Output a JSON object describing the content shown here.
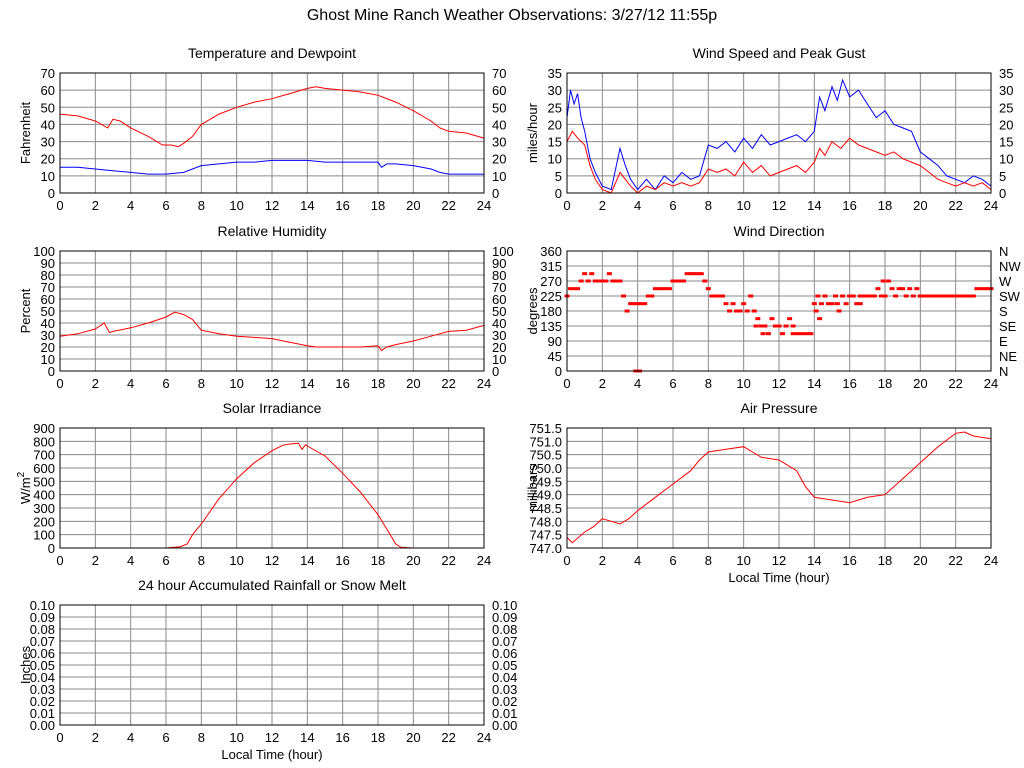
{
  "page": {
    "title": "Ghost Mine Ranch Weather Observations: 3/27/12 11:55p"
  },
  "chart_data": [
    {
      "id": "temp",
      "type": "line",
      "title": "Temperature and Dewpoint",
      "ylabel": "Fahrenheit",
      "xlabel": "",
      "xlim": [
        0,
        24
      ],
      "ylim": [
        0,
        70
      ],
      "xticks": [
        0,
        2,
        4,
        6,
        8,
        10,
        12,
        14,
        16,
        18,
        20,
        22,
        24
      ],
      "yticks": [
        0,
        10,
        20,
        30,
        40,
        50,
        60,
        70
      ],
      "right_ticks": [
        "0",
        "10",
        "20",
        "30",
        "40",
        "50",
        "60",
        "70"
      ],
      "grid": true,
      "series": [
        {
          "color": "#ff0000",
          "x": [
            0,
            1,
            2,
            2.7,
            3,
            3.4,
            4,
            5,
            5.8,
            6.3,
            6.7,
            7,
            7.5,
            8,
            9,
            10,
            11,
            12,
            13,
            14,
            14.5,
            15,
            16,
            17,
            18,
            19,
            20,
            21,
            21.5,
            22,
            23,
            24
          ],
          "y": [
            46,
            45,
            42,
            38,
            43,
            42,
            38,
            33,
            28,
            28,
            27,
            29,
            33,
            40,
            46,
            50,
            53,
            55,
            58,
            61,
            62,
            61,
            60,
            59,
            57,
            53,
            48,
            42,
            38,
            36,
            35,
            32
          ]
        },
        {
          "color": "#0000ff",
          "x": [
            0,
            1,
            2,
            3,
            4,
            5,
            6,
            7,
            7.5,
            8,
            9,
            10,
            11,
            12,
            13,
            14,
            15,
            16,
            17,
            18,
            18.2,
            18.5,
            19,
            20,
            21,
            21.5,
            22,
            23,
            24
          ],
          "y": [
            15,
            15,
            14,
            13,
            12,
            11,
            11,
            12,
            14,
            16,
            17,
            18,
            18,
            19,
            19,
            19,
            18,
            18,
            18,
            18,
            15,
            17,
            17,
            16,
            14,
            12,
            11,
            11,
            11
          ]
        }
      ]
    },
    {
      "id": "wind",
      "type": "line",
      "title": "Wind Speed and Peak Gust",
      "ylabel": "miles/hour",
      "xlabel": "",
      "xlim": [
        0,
        24
      ],
      "ylim": [
        0,
        35
      ],
      "xticks": [
        0,
        2,
        4,
        6,
        8,
        10,
        12,
        14,
        16,
        18,
        20,
        22,
        24
      ],
      "yticks": [
        0,
        5,
        10,
        15,
        20,
        25,
        30,
        35
      ],
      "right_ticks": [
        "0",
        "5",
        "10",
        "15",
        "20",
        "25",
        "30",
        "35"
      ],
      "grid": true,
      "series": [
        {
          "color": "#0000ff",
          "x": [
            0,
            0.2,
            0.4,
            0.6,
            0.8,
            1,
            1.3,
            1.6,
            2,
            2.5,
            3,
            3.3,
            3.6,
            4,
            4.5,
            5,
            5.5,
            6,
            6.5,
            7,
            7.5,
            8,
            8.5,
            9,
            9.5,
            10,
            10.5,
            11,
            11.5,
            12,
            12.5,
            13,
            13.5,
            14,
            14.3,
            14.6,
            15,
            15.3,
            15.6,
            16,
            16.5,
            17,
            17.5,
            18,
            18.5,
            19,
            19.5,
            20,
            20.5,
            21,
            21.5,
            22,
            22.5,
            23,
            23.5,
            24
          ],
          "y": [
            22,
            30,
            26,
            29,
            22,
            18,
            10,
            6,
            2,
            1,
            13,
            8,
            4,
            1,
            4,
            1,
            5,
            3,
            6,
            4,
            5,
            14,
            13,
            15,
            12,
            16,
            13,
            17,
            14,
            15,
            16,
            17,
            15,
            18,
            28,
            24,
            31,
            27,
            33,
            28,
            30,
            26,
            22,
            24,
            20,
            19,
            18,
            12,
            10,
            8,
            5,
            4,
            3,
            5,
            4,
            2
          ]
        },
        {
          "color": "#ff0000",
          "x": [
            0,
            0.3,
            0.6,
            1,
            1.3,
            1.6,
            2,
            2.5,
            3,
            3.3,
            3.6,
            4,
            4.5,
            5,
            5.5,
            6,
            6.5,
            7,
            7.5,
            8,
            8.5,
            9,
            9.5,
            10,
            10.5,
            11,
            11.5,
            12,
            12.5,
            13,
            13.5,
            14,
            14.3,
            14.6,
            15,
            15.5,
            16,
            16.5,
            17,
            17.5,
            18,
            18.5,
            19,
            19.5,
            20,
            20.5,
            21,
            21.5,
            22,
            22.5,
            23,
            23.5,
            24
          ],
          "y": [
            15,
            18,
            16,
            14,
            8,
            4,
            1,
            0,
            6,
            4,
            2,
            0,
            2,
            1,
            3,
            2,
            3,
            2,
            3,
            7,
            6,
            7,
            5,
            9,
            6,
            8,
            5,
            6,
            7,
            8,
            6,
            9,
            13,
            11,
            15,
            13,
            16,
            14,
            13,
            12,
            11,
            12,
            10,
            9,
            8,
            6,
            4,
            3,
            2,
            3,
            2,
            3,
            1
          ]
        }
      ]
    },
    {
      "id": "rh",
      "type": "line",
      "title": "Relative Humidity",
      "ylabel": "Percent",
      "xlabel": "",
      "xlim": [
        0,
        24
      ],
      "ylim": [
        0,
        100
      ],
      "xticks": [
        0,
        2,
        4,
        6,
        8,
        10,
        12,
        14,
        16,
        18,
        20,
        22,
        24
      ],
      "yticks": [
        0,
        10,
        20,
        30,
        40,
        50,
        60,
        70,
        80,
        90,
        100
      ],
      "right_ticks": [
        "0",
        "10",
        "20",
        "30",
        "40",
        "50",
        "60",
        "70",
        "80",
        "90",
        "100"
      ],
      "grid": true,
      "series": [
        {
          "color": "#ff0000",
          "x": [
            0,
            1,
            2,
            2.5,
            2.8,
            3,
            4,
            5,
            6,
            6.5,
            7,
            7.5,
            8,
            9,
            10,
            11,
            12,
            13,
            14,
            14.5,
            15,
            16,
            17,
            18,
            18.2,
            18.5,
            19,
            20,
            21,
            22,
            23,
            24
          ],
          "y": [
            29,
            31,
            35,
            40,
            32,
            33,
            36,
            40,
            45,
            49,
            47,
            43,
            34,
            31,
            29,
            28,
            27,
            24,
            21,
            20,
            20,
            20,
            20,
            21,
            17,
            20,
            22,
            25,
            29,
            33,
            34,
            38
          ]
        }
      ]
    },
    {
      "id": "wdir",
      "type": "scatter",
      "title": "Wind Direction",
      "ylabel": "degrees",
      "xlabel": "",
      "xlim": [
        0,
        24
      ],
      "ylim": [
        0,
        360
      ],
      "xticks": [
        0,
        2,
        4,
        6,
        8,
        10,
        12,
        14,
        16,
        18,
        20,
        22,
        24
      ],
      "yticks": [
        0,
        45,
        90,
        135,
        180,
        225,
        270,
        315,
        360
      ],
      "right_ticks": [
        "N",
        "NE",
        "E",
        "SE",
        "S",
        "SW",
        "W",
        "NW",
        "N"
      ],
      "grid": true,
      "series": [
        {
          "color": "#ff0000",
          "x": [
            0,
            0.2,
            0.4,
            0.6,
            0.8,
            1,
            1.2,
            1.4,
            1.6,
            1.8,
            2,
            2.2,
            2.4,
            2.6,
            2.8,
            3,
            3.2,
            3.4,
            3.6,
            3.8,
            4,
            4.2,
            4.4,
            4.6,
            4.8,
            5,
            5.2,
            5.4,
            5.6,
            5.8,
            6,
            6.2,
            6.4,
            6.6,
            6.8,
            7,
            7.2,
            7.4,
            7.6,
            7.8,
            8,
            8.2,
            8.4,
            8.6,
            8.8,
            9,
            9.2,
            9.4,
            9.6,
            9.8,
            10,
            10.2,
            10.4,
            10.6,
            10.8,
            11,
            11.2,
            11.4,
            11.6,
            11.8,
            12,
            12.2,
            12.4,
            12.6,
            12.8,
            13,
            13.2,
            13.4,
            13.6,
            13.8,
            14,
            14.2,
            14.4,
            14.6,
            14.8,
            15,
            15.2,
            15.4,
            15.6,
            15.8,
            16,
            16.2,
            16.4,
            16.6,
            16.8,
            17,
            17.2,
            17.4,
            17.6,
            17.8,
            18,
            18.2,
            18.4,
            18.6,
            18.8,
            19,
            19.2,
            19.4,
            19.6,
            19.8,
            20,
            20.2,
            20.4,
            20.6,
            20.8,
            21,
            21.2,
            21.4,
            21.6,
            21.8,
            22,
            22.2,
            22.4,
            22.6,
            22.8,
            23,
            23.2,
            23.4,
            23.6,
            23.8,
            24,
            3.9,
            4.1,
            14.1,
            14.3,
            15.3,
            16.6,
            17.9,
            10.7,
            11.1,
            12.8
          ],
          "y": [
            225,
            247,
            247,
            247,
            270,
            292,
            270,
            292,
            270,
            270,
            270,
            270,
            292,
            270,
            270,
            270,
            225,
            180,
            202,
            202,
            202,
            202,
            202,
            225,
            225,
            247,
            247,
            247,
            247,
            247,
            270,
            270,
            270,
            270,
            292,
            292,
            292,
            292,
            292,
            270,
            247,
            225,
            225,
            225,
            225,
            202,
            180,
            202,
            180,
            180,
            202,
            180,
            225,
            180,
            157,
            135,
            135,
            112,
            157,
            135,
            135,
            112,
            135,
            157,
            112,
            112,
            112,
            112,
            112,
            112,
            202,
            225,
            202,
            225,
            202,
            202,
            225,
            180,
            225,
            202,
            225,
            225,
            202,
            225,
            225,
            225,
            225,
            225,
            247,
            225,
            225,
            270,
            247,
            225,
            247,
            247,
            225,
            247,
            225,
            247,
            225,
            225,
            225,
            225,
            225,
            225,
            225,
            225,
            225,
            225,
            225,
            225,
            225,
            225,
            225,
            225,
            247,
            247,
            247,
            247,
            247,
            0,
            0,
            180,
            157,
            202,
            202,
            270,
            135,
            112,
            135
          ]
        }
      ]
    },
    {
      "id": "solar",
      "type": "line",
      "title": "Solar Irradiance",
      "ylabel": "W/m2",
      "xlabel": "",
      "xlim": [
        0,
        24
      ],
      "ylim": [
        0,
        900
      ],
      "xticks": [
        0,
        2,
        4,
        6,
        8,
        10,
        12,
        14,
        16,
        18,
        20,
        22,
        24
      ],
      "yticks": [
        0,
        100,
        200,
        300,
        400,
        500,
        600,
        700,
        800,
        900
      ],
      "right_ticks": [],
      "grid": true,
      "series": [
        {
          "color": "#ff0000",
          "x": [
            0,
            6,
            6.8,
            7.2,
            7.5,
            8,
            9,
            10,
            11,
            12,
            12.6,
            13,
            13.5,
            13.7,
            13.9,
            14,
            15,
            16,
            17,
            18,
            18.6,
            19,
            19.3,
            20,
            24
          ],
          "y": [
            0,
            0,
            10,
            30,
            100,
            180,
            370,
            520,
            640,
            730,
            770,
            780,
            785,
            740,
            775,
            765,
            690,
            560,
            420,
            250,
            120,
            30,
            5,
            0,
            0
          ]
        }
      ]
    },
    {
      "id": "pressure",
      "type": "line",
      "title": "Air Pressure",
      "ylabel": "millibars",
      "xlabel": "Local Time (hour)",
      "xlim": [
        0,
        24
      ],
      "ylim": [
        747.0,
        751.5
      ],
      "xticks": [
        0,
        2,
        4,
        6,
        8,
        10,
        12,
        14,
        16,
        18,
        20,
        22,
        24
      ],
      "yticks": [
        747.0,
        747.5,
        748.0,
        748.5,
        749.0,
        749.5,
        750.0,
        750.5,
        751.0,
        751.5
      ],
      "ytick_labels": [
        "747.0",
        "747.5",
        "748.0",
        "748.5",
        "749.0",
        "749.5",
        "750.0",
        "750.5",
        "751.0",
        "751.5"
      ],
      "right_ticks": [],
      "grid": true,
      "series": [
        {
          "color": "#ff0000",
          "x": [
            0,
            0.3,
            1,
            1.5,
            2,
            2.5,
            3,
            3.5,
            4,
            5,
            6,
            7,
            7.5,
            8,
            9,
            10,
            10.5,
            11,
            12,
            13,
            13.5,
            14,
            15,
            16,
            17,
            18,
            19,
            20,
            21,
            22,
            22.5,
            23,
            24
          ],
          "y": [
            747.4,
            747.2,
            747.6,
            747.8,
            748.1,
            748.0,
            747.9,
            748.1,
            748.4,
            748.9,
            749.4,
            749.9,
            750.3,
            750.6,
            750.7,
            750.8,
            750.6,
            750.4,
            750.3,
            749.9,
            749.3,
            748.9,
            748.8,
            748.7,
            748.9,
            749.0,
            749.6,
            750.2,
            750.8,
            751.3,
            751.35,
            751.2,
            751.1
          ]
        }
      ]
    },
    {
      "id": "rain",
      "type": "line",
      "title": "24 hour Accumulated Rainfall or Snow Melt",
      "ylabel": "Inches",
      "xlabel": "Local Time (hour)",
      "xlim": [
        0,
        24
      ],
      "ylim": [
        0,
        0.1
      ],
      "xticks": [
        0,
        2,
        4,
        6,
        8,
        10,
        12,
        14,
        16,
        18,
        20,
        22,
        24
      ],
      "yticks": [
        0,
        0.01,
        0.02,
        0.03,
        0.04,
        0.05,
        0.06,
        0.07,
        0.08,
        0.09,
        0.1
      ],
      "ytick_labels": [
        "0.00",
        "0.01",
        "0.02",
        "0.03",
        "0.04",
        "0.05",
        "0.06",
        "0.07",
        "0.08",
        "0.09",
        "0.10"
      ],
      "right_ticks": [
        "0.00",
        "0.01",
        "0.02",
        "0.03",
        "0.04",
        "0.05",
        "0.06",
        "0.07",
        "0.08",
        "0.09",
        "0.10"
      ],
      "grid": true,
      "series": [
        {
          "color": "#ff0000",
          "x": [
            0,
            24
          ],
          "y": [
            0,
            0
          ]
        }
      ]
    }
  ]
}
